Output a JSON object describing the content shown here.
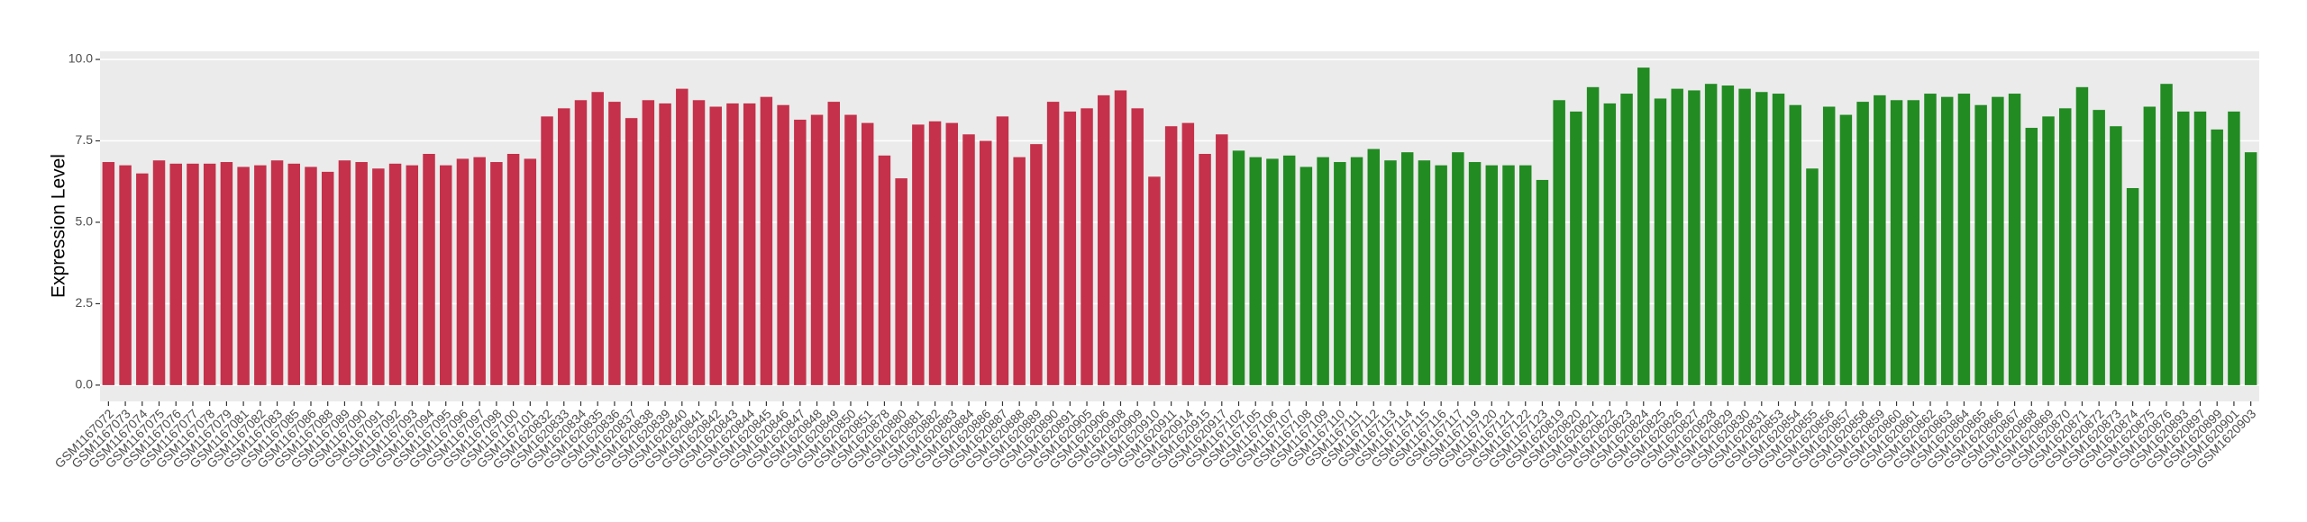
{
  "chart_data": {
    "type": "bar",
    "y_label": "Expression Level",
    "ylim": [
      -0.5,
      10.25
    ],
    "yticks": [
      {
        "value": 0,
        "label": "0.0"
      },
      2.5,
      {
        "value": 5,
        "label": "5.0"
      },
      7.5,
      {
        "value": 10,
        "label": "10.0"
      }
    ],
    "grid": true,
    "series": [
      {
        "color": "#c5314a",
        "categories": [
          "GSM1167072",
          "GSM1167073",
          "GSM1167074",
          "GSM1167075",
          "GSM1167076",
          "GSM1167077",
          "GSM1167078",
          "GSM1167079",
          "GSM1167081",
          "GSM1167082",
          "GSM1167083",
          "GSM1167085",
          "GSM1167086",
          "GSM1167088",
          "GSM1167089",
          "GSM1167090",
          "GSM1167091",
          "GSM1167092",
          "GSM1167093",
          "GSM1167094",
          "GSM1167095",
          "GSM1167096",
          "GSM1167097",
          "GSM1167098",
          "GSM1167100",
          "GSM1167101",
          "GSM1620832",
          "GSM1620833",
          "GSM1620834",
          "GSM1620835",
          "GSM1620836",
          "GSM1620837",
          "GSM1620838",
          "GSM1620839",
          "GSM1620840",
          "GSM1620841",
          "GSM1620842",
          "GSM1620843",
          "GSM1620844",
          "GSM1620845",
          "GSM1620846",
          "GSM1620847",
          "GSM1620848",
          "GSM1620849",
          "GSM1620850",
          "GSM1620851",
          "GSM1620878",
          "GSM1620880",
          "GSM1620881",
          "GSM1620882",
          "GSM1620883",
          "GSM1620884",
          "GSM1620886",
          "GSM1620887",
          "GSM1620888",
          "GSM1620889",
          "GSM1620890",
          "GSM1620891",
          "GSM1620905",
          "GSM1620906",
          "GSM1620908",
          "GSM1620909",
          "GSM1620910",
          "GSM1620911",
          "GSM1620914",
          "GSM1620915",
          "GSM1620917"
        ],
        "values": [
          6.85,
          6.75,
          6.5,
          6.9,
          6.8,
          6.8,
          6.8,
          6.85,
          6.7,
          6.75,
          6.9,
          6.8,
          6.7,
          6.55,
          6.9,
          6.85,
          6.65,
          6.8,
          6.75,
          7.1,
          6.75,
          6.95,
          7.0,
          6.85,
          7.1,
          6.95,
          8.25,
          8.5,
          8.75,
          9.0,
          8.7,
          8.2,
          8.75,
          8.65,
          9.1,
          8.75,
          8.55,
          8.65,
          8.65,
          8.85,
          8.6,
          8.15,
          8.3,
          8.7,
          8.3,
          8.05,
          7.05,
          6.35,
          8.0,
          8.1,
          8.05,
          7.7,
          7.5,
          8.25,
          7.0,
          7.4,
          8.7,
          8.4,
          8.5,
          8.9,
          9.05,
          8.5,
          6.4,
          7.95,
          8.05,
          7.1,
          7.7
        ]
      },
      {
        "color": "#228b22",
        "categories": [
          "GSM1167102",
          "GSM1167105",
          "GSM1167106",
          "GSM1167107",
          "GSM1167108",
          "GSM1167109",
          "GSM1167110",
          "GSM1167111",
          "GSM1167112",
          "GSM1167113",
          "GSM1167114",
          "GSM1167115",
          "GSM1167116",
          "GSM1167117",
          "GSM1167119",
          "GSM1167120",
          "GSM1167121",
          "GSM1167122",
          "GSM1167123",
          "GSM1620819",
          "GSM1620820",
          "GSM1620821",
          "GSM1620822",
          "GSM1620823",
          "GSM1620824",
          "GSM1620825",
          "GSM1620826",
          "GSM1620827",
          "GSM1620828",
          "GSM1620829",
          "GSM1620830",
          "GSM1620831",
          "GSM1620853",
          "GSM1620854",
          "GSM1620855",
          "GSM1620856",
          "GSM1620857",
          "GSM1620858",
          "GSM1620859",
          "GSM1620860",
          "GSM1620861",
          "GSM1620862",
          "GSM1620863",
          "GSM1620864",
          "GSM1620865",
          "GSM1620866",
          "GSM1620867",
          "GSM1620868",
          "GSM1620869",
          "GSM1620870",
          "GSM1620871",
          "GSM1620872",
          "GSM1620873",
          "GSM1620874",
          "GSM1620875",
          "GSM1620876",
          "GSM1620893",
          "GSM1620897",
          "GSM1620899",
          "GSM1620901",
          "GSM1620903"
        ],
        "values": [
          7.2,
          7.0,
          6.95,
          7.05,
          6.7,
          7.0,
          6.85,
          7.0,
          7.25,
          6.9,
          7.15,
          6.9,
          6.75,
          7.15,
          6.85,
          6.75,
          6.75,
          6.75,
          6.3,
          8.75,
          8.4,
          9.15,
          8.65,
          8.95,
          9.75,
          8.8,
          9.1,
          9.05,
          9.25,
          9.2,
          9.1,
          9.0,
          8.95,
          8.6,
          6.65,
          8.55,
          8.3,
          8.7,
          8.9,
          8.75,
          8.75,
          8.95,
          8.85,
          8.95,
          8.6,
          8.85,
          8.95,
          7.9,
          8.25,
          8.5,
          9.15,
          8.45,
          7.95,
          6.05,
          8.55,
          9.25,
          8.4,
          8.4,
          7.85,
          8.4,
          7.15
        ]
      }
    ]
  }
}
